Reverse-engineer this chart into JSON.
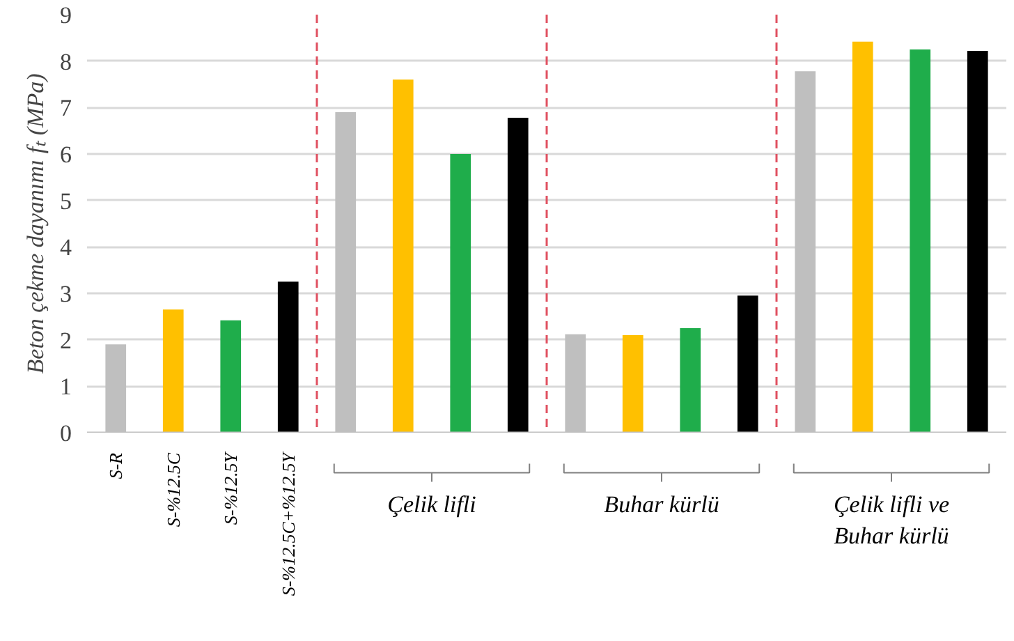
{
  "chart_data": {
    "type": "bar",
    "ylabel": "Beton çekme dayanımı fₜ (MPa)",
    "categories": [
      null,
      "Çelik lifli",
      "Buhar kürlü",
      "Çelik lifli ve Buhar kürlü"
    ],
    "series": [
      {
        "name": "S-R",
        "color": "#bfbfbf",
        "values": [
          1.9,
          6.9,
          2.12,
          7.78
        ]
      },
      {
        "name": "S-%12.5C",
        "color": "#ffc000",
        "values": [
          2.65,
          7.6,
          2.1,
          8.42
        ]
      },
      {
        "name": "S-%12.5Y",
        "color": "#1fad4b",
        "values": [
          2.42,
          6.0,
          2.25,
          8.25
        ]
      },
      {
        "name": "S-%12.5C+%12.5Y",
        "color": "#000000",
        "values": [
          3.25,
          6.78,
          2.95,
          8.22
        ]
      }
    ],
    "ylim": [
      0,
      9
    ],
    "yticks": [
      0,
      1,
      2,
      3,
      4,
      5,
      6,
      7,
      8,
      9
    ],
    "grid": "y"
  }
}
